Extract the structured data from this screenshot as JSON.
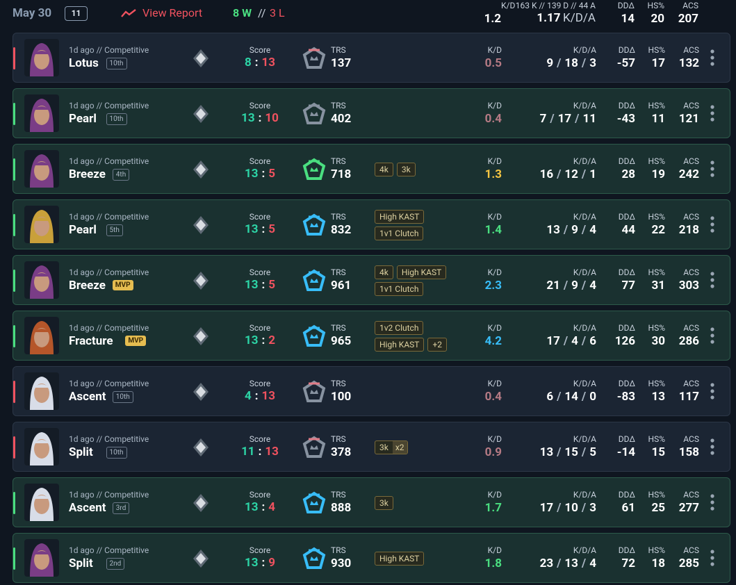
{
  "header": {
    "date": "May 30",
    "count": 11,
    "view_report": "View Report",
    "wins": "8 W",
    "sep": "//",
    "losses": "3 L",
    "kd_label": "K/D",
    "kd": 1.2,
    "kda_detail": "163 K // 139 D // 44 A",
    "kda": 1.17,
    "kda_label": "K/D/A",
    "dd_label": "DDΔ",
    "dd": 14,
    "hs_label": "HS%",
    "hs": 20,
    "acs_label": "ACS",
    "acs": 207
  },
  "labels": {
    "score": "Score",
    "score_sep": ":",
    "trs": "TRS",
    "kd": "K/D",
    "kda": "K/D/A",
    "kda_sep": "/",
    "dd": "DDΔ",
    "hs": "HS%",
    "acs": "ACS"
  },
  "matches": [
    {
      "time": "1d ago // Competitive",
      "map": "Lotus",
      "placement": "10th",
      "team": 8,
      "enemy": 13,
      "trs": 137,
      "tags": [],
      "kd": 0.5,
      "k": 9,
      "d": 18,
      "a": 3,
      "dd": -57,
      "hs": 17,
      "acs": 132,
      "portrait_color": "#7a3d86"
    },
    {
      "time": "1d ago // Competitive",
      "map": "Pearl",
      "placement": "10th",
      "team": 13,
      "enemy": 10,
      "trs": 402,
      "tags": [],
      "kd": 0.4,
      "k": 7,
      "d": 17,
      "a": 11,
      "dd": -43,
      "hs": 11,
      "acs": 121,
      "portrait_color": "#7a3d86"
    },
    {
      "time": "1d ago // Competitive",
      "map": "Breeze",
      "placement": "4th",
      "team": 13,
      "enemy": 5,
      "trs": 718,
      "tags": [
        [
          "4k",
          "3k"
        ]
      ],
      "kd": 1.3,
      "k": 16,
      "d": 12,
      "a": 1,
      "dd": 28,
      "hs": 19,
      "acs": 242,
      "portrait_color": "#7a3d86"
    },
    {
      "time": "1d ago // Competitive",
      "map": "Pearl",
      "placement": "5th",
      "team": 13,
      "enemy": 5,
      "trs": 832,
      "tags": [
        [
          "High KAST"
        ],
        [
          "1v1 Clutch"
        ]
      ],
      "kd": 1.4,
      "k": 13,
      "d": 9,
      "a": 4,
      "dd": 44,
      "hs": 22,
      "acs": 218,
      "portrait_color": "#c9a03a"
    },
    {
      "time": "1d ago // Competitive",
      "map": "Breeze",
      "placement": "MVP",
      "mvp": true,
      "team": 13,
      "enemy": 5,
      "trs": 961,
      "tags": [
        [
          "4k",
          "High KAST"
        ],
        [
          "1v1 Clutch"
        ]
      ],
      "kd": 2.3,
      "k": 21,
      "d": 9,
      "a": 4,
      "dd": 77,
      "hs": 31,
      "acs": 303,
      "portrait_color": "#7a3d86"
    },
    {
      "time": "1d ago // Competitive",
      "map": "Fracture",
      "placement": "MVP",
      "mvp": true,
      "team": 13,
      "enemy": 2,
      "trs": 965,
      "tags": [
        [
          "1v2 Clutch"
        ],
        [
          "High KAST",
          "+2"
        ]
      ],
      "kd": 4.2,
      "k": 17,
      "d": 4,
      "a": 6,
      "dd": 126,
      "hs": 30,
      "acs": 286,
      "portrait_color": "#b5562a"
    },
    {
      "time": "1d ago // Competitive",
      "map": "Ascent",
      "placement": "10th",
      "team": 4,
      "enemy": 13,
      "trs": 100,
      "tags": [],
      "kd": 0.4,
      "k": 6,
      "d": 14,
      "a": 0,
      "dd": -83,
      "hs": 13,
      "acs": 117,
      "portrait_color": "#d8dde8"
    },
    {
      "time": "1d ago // Competitive",
      "map": "Split",
      "placement": "10th",
      "team": 11,
      "enemy": 13,
      "trs": 378,
      "tags": [
        [
          {
            "text": "3k",
            "count": "x2"
          }
        ]
      ],
      "kd": 0.9,
      "k": 13,
      "d": 15,
      "a": 5,
      "dd": -14,
      "hs": 15,
      "acs": 158,
      "portrait_color": "#d8dde8"
    },
    {
      "time": "1d ago // Competitive",
      "map": "Ascent",
      "placement": "3rd",
      "team": 13,
      "enemy": 4,
      "trs": 888,
      "tags": [
        [
          "3k"
        ]
      ],
      "kd": 1.7,
      "k": 17,
      "d": 10,
      "a": 3,
      "dd": 61,
      "hs": 25,
      "acs": 277,
      "portrait_color": "#d8dde8"
    },
    {
      "time": "1d ago // Competitive",
      "map": "Split",
      "placement": "2nd",
      "team": 13,
      "enemy": 9,
      "trs": 930,
      "tags": [
        [
          "High KAST"
        ]
      ],
      "kd": 1.8,
      "k": 23,
      "d": 13,
      "a": 4,
      "dd": 72,
      "hs": 18,
      "acs": 285,
      "portrait_color": "#7a3d86"
    }
  ]
}
